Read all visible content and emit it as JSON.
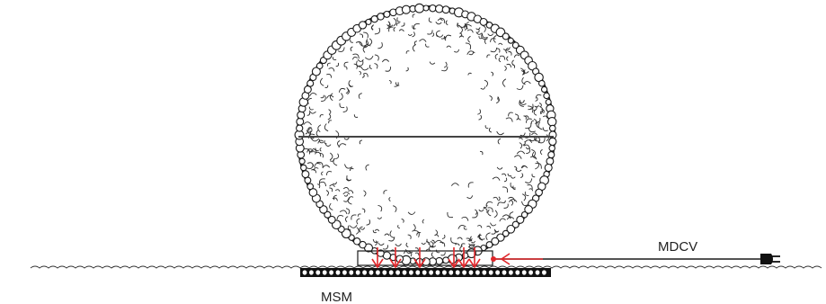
{
  "labels": {
    "cable": "MDCV",
    "mesh": "MSM"
  },
  "colors": {
    "outline": "#1a1a1a",
    "flow_arrows": "#e0262a",
    "background": "#ffffff"
  },
  "icons": [
    "plug-icon"
  ],
  "arrow_counts": {
    "down_arrows": 6,
    "inflow_arrows": 1
  }
}
